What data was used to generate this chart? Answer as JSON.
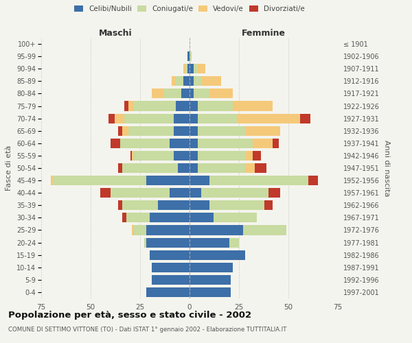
{
  "age_groups": [
    "0-4",
    "5-9",
    "10-14",
    "15-19",
    "20-24",
    "25-29",
    "30-34",
    "35-39",
    "40-44",
    "45-49",
    "50-54",
    "55-59",
    "60-64",
    "65-69",
    "70-74",
    "75-79",
    "80-84",
    "85-89",
    "90-94",
    "95-99",
    "100+"
  ],
  "birth_years": [
    "1997-2001",
    "1992-1996",
    "1987-1991",
    "1982-1986",
    "1977-1981",
    "1972-1976",
    "1967-1971",
    "1962-1966",
    "1957-1961",
    "1952-1956",
    "1947-1951",
    "1942-1946",
    "1937-1941",
    "1932-1936",
    "1927-1931",
    "1922-1926",
    "1917-1921",
    "1912-1916",
    "1907-1911",
    "1902-1906",
    "≤ 1901"
  ],
  "maschi": {
    "celibi": [
      22,
      19,
      19,
      20,
      22,
      22,
      20,
      16,
      10,
      22,
      6,
      8,
      10,
      8,
      8,
      7,
      4,
      3,
      1,
      1,
      0
    ],
    "coniugati": [
      0,
      0,
      0,
      0,
      1,
      6,
      12,
      18,
      30,
      47,
      28,
      20,
      25,
      23,
      25,
      21,
      9,
      4,
      1,
      0,
      0
    ],
    "vedovi": [
      0,
      0,
      0,
      0,
      0,
      1,
      0,
      0,
      0,
      1,
      0,
      1,
      0,
      3,
      5,
      3,
      6,
      2,
      1,
      0,
      0
    ],
    "divorziati": [
      0,
      0,
      0,
      0,
      0,
      0,
      2,
      2,
      5,
      0,
      2,
      1,
      5,
      2,
      3,
      2,
      0,
      0,
      0,
      0,
      0
    ]
  },
  "femmine": {
    "nubili": [
      21,
      21,
      22,
      28,
      20,
      27,
      12,
      10,
      6,
      10,
      4,
      4,
      4,
      4,
      4,
      4,
      2,
      2,
      2,
      0,
      0
    ],
    "coniugate": [
      0,
      0,
      0,
      0,
      5,
      22,
      22,
      28,
      34,
      50,
      24,
      24,
      28,
      24,
      20,
      18,
      8,
      4,
      2,
      1,
      0
    ],
    "vedove": [
      0,
      0,
      0,
      0,
      0,
      0,
      0,
      0,
      0,
      0,
      5,
      4,
      10,
      18,
      32,
      20,
      12,
      10,
      4,
      0,
      0
    ],
    "divorziate": [
      0,
      0,
      0,
      0,
      0,
      0,
      0,
      4,
      6,
      5,
      6,
      4,
      3,
      0,
      5,
      0,
      0,
      0,
      0,
      0,
      0
    ]
  },
  "colors": {
    "celibi": "#3d6fa8",
    "coniugati": "#c8dba0",
    "vedovi": "#f5c97a",
    "divorziati": "#c0392b"
  },
  "xlim": 75,
  "title": "Popolazione per età, sesso e stato civile - 2002",
  "subtitle": "COMUNE DI SETTIMO VITTONE (TO) - Dati ISTAT 1° gennaio 2002 - Elaborazione TUTTITALIA.IT",
  "ylabel_left": "Fasce di età",
  "ylabel_right": "Anni di nascita",
  "xlabel_left": "Maschi",
  "xlabel_right": "Femmine",
  "bg_color": "#f4f4ee",
  "grid_color": "#cccccc",
  "legend_labels": [
    "Celibi/Nubili",
    "Coniugati/e",
    "Vedovi/e",
    "Divorziati/e"
  ]
}
